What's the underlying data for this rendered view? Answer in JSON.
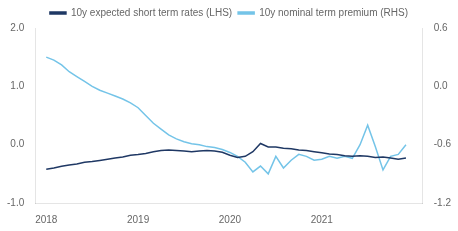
{
  "chart_data": {
    "type": "line",
    "x": [
      2018.0,
      2018.083,
      2018.167,
      2018.25,
      2018.333,
      2018.417,
      2018.5,
      2018.583,
      2018.667,
      2018.75,
      2018.833,
      2018.917,
      2019.0,
      2019.083,
      2019.167,
      2019.25,
      2019.333,
      2019.417,
      2019.5,
      2019.583,
      2019.667,
      2019.75,
      2019.833,
      2019.917,
      2020.0,
      2020.083,
      2020.167,
      2020.25,
      2020.333,
      2020.417,
      2020.5,
      2020.583,
      2020.667,
      2020.75,
      2020.833,
      2020.917,
      2021.0,
      2021.083,
      2021.167,
      2021.25,
      2021.333,
      2021.417,
      2021.5,
      2021.583,
      2021.667,
      2021.75,
      2021.833,
      2021.917
    ],
    "series": [
      {
        "name": "10y expected short term rates (LHS)",
        "color": "#1f3864",
        "values": [
          -0.42,
          -0.4,
          -0.37,
          -0.35,
          -0.33,
          -0.3,
          -0.29,
          -0.27,
          -0.25,
          -0.23,
          -0.21,
          -0.18,
          -0.17,
          -0.15,
          -0.12,
          -0.1,
          -0.09,
          -0.1,
          -0.11,
          -0.12,
          -0.11,
          -0.1,
          -0.11,
          -0.13,
          -0.18,
          -0.22,
          -0.2,
          -0.12,
          0.02,
          -0.04,
          -0.04,
          -0.06,
          -0.07,
          -0.09,
          -0.1,
          -0.12,
          -0.14,
          -0.16,
          -0.17,
          -0.19,
          -0.2,
          -0.19,
          -0.2,
          -0.22,
          -0.21,
          -0.23,
          -0.25,
          -0.23
        ]
      },
      {
        "name": "10y nominal term premium (RHS)",
        "color": "#74c4e8",
        "axis": "y2",
        "values": [
          0.3,
          0.27,
          0.22,
          0.15,
          0.1,
          0.05,
          0.0,
          -0.04,
          -0.07,
          -0.1,
          -0.13,
          -0.17,
          -0.22,
          -0.3,
          -0.38,
          -0.44,
          -0.5,
          -0.54,
          -0.57,
          -0.59,
          -0.6,
          -0.62,
          -0.63,
          -0.65,
          -0.68,
          -0.72,
          -0.78,
          -0.88,
          -0.82,
          -0.9,
          -0.72,
          -0.84,
          -0.76,
          -0.7,
          -0.72,
          -0.76,
          -0.75,
          -0.72,
          -0.74,
          -0.72,
          -0.74,
          -0.6,
          -0.4,
          -0.62,
          -0.86,
          -0.72,
          -0.7,
          -0.6
        ]
      }
    ],
    "xlim": [
      2017.88,
      2022.1
    ],
    "xticks": [
      2018,
      2019,
      2020,
      2021
    ],
    "ylim": [
      -1.0,
      2.0
    ],
    "yticks": [
      {
        "value": -1.0,
        "label": "-1.0"
      },
      {
        "value": 0.0,
        "label": "0.0"
      },
      {
        "value": 1.0,
        "label": "1.0"
      },
      {
        "value": 2.0,
        "label": "2.0"
      }
    ],
    "y2lim": [
      -1.2,
      0.6
    ],
    "y2ticks": [
      -1.2,
      -0.6,
      {
        "value": 0.0,
        "label": "0.0"
      },
      0.6
    ],
    "grid": false,
    "legend": "top"
  }
}
